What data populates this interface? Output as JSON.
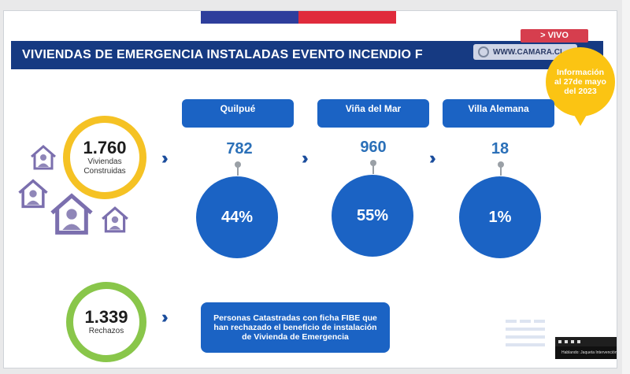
{
  "title": "VIVIENDAS DE EMERGENCIA INSTALADAS EVENTO INCENDIO F",
  "live_label": "> VIVO",
  "broadcaster": "WWW.CAMARA.CL",
  "badge": {
    "line1": "Información",
    "line2": "al 27de mayo",
    "line3": "del 2023"
  },
  "built": {
    "value": "1.760",
    "label1": "Viviendas",
    "label2": "Construidas"
  },
  "rejections": {
    "value": "1.339",
    "label": "Rechazos"
  },
  "cities": [
    {
      "name": "Quilpué",
      "value": "782",
      "percent": "44%"
    },
    {
      "name": "Viña del Mar",
      "value": "960",
      "percent": "55%"
    },
    {
      "name": "Villa Alemana",
      "value": "18",
      "percent": "1%"
    }
  ],
  "note": "Personas Catastradas con ficha FIBE que han rechazado el beneficio de instalación de Vivienda de Emergencia",
  "video_caption": "Hablando: Jaqueta Intervención",
  "colors": {
    "navy": "#163a82",
    "blue": "#1b63c4",
    "yellow": "#f5c224",
    "green": "#89c64a",
    "house": "#7b6fae"
  },
  "icons": [
    "house-person-icon",
    "chevron-double-right-icon",
    "camara-seal-icon"
  ]
}
